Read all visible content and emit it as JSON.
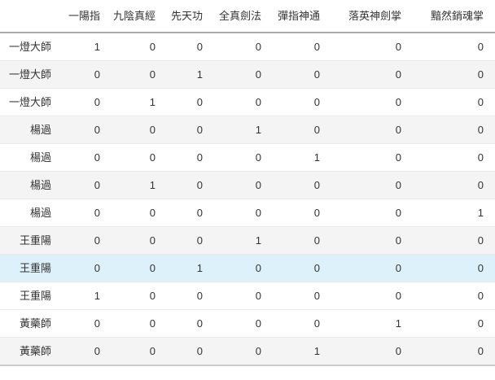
{
  "table": {
    "corner_label": "",
    "columns": [
      "一陽指",
      "九陰真經",
      "先天功",
      "全真劍法",
      "彈指神通",
      "落英神劍掌",
      "黯然銷魂掌"
    ],
    "rows": [
      {
        "label": "一燈大師",
        "values": [
          "1",
          "0",
          "0",
          "0",
          "0",
          "0",
          "0"
        ],
        "variant": "default"
      },
      {
        "label": "一燈大師",
        "values": [
          "0",
          "0",
          "1",
          "0",
          "0",
          "0",
          "0"
        ],
        "variant": "striped"
      },
      {
        "label": "一燈大師",
        "values": [
          "0",
          "1",
          "0",
          "0",
          "0",
          "0",
          "0"
        ],
        "variant": "default"
      },
      {
        "label": "楊過",
        "values": [
          "0",
          "0",
          "0",
          "1",
          "0",
          "0",
          "0"
        ],
        "variant": "striped"
      },
      {
        "label": "楊過",
        "values": [
          "0",
          "0",
          "0",
          "0",
          "1",
          "0",
          "0"
        ],
        "variant": "default"
      },
      {
        "label": "楊過",
        "values": [
          "0",
          "1",
          "0",
          "0",
          "0",
          "0",
          "0"
        ],
        "variant": "striped"
      },
      {
        "label": "楊過",
        "values": [
          "0",
          "0",
          "0",
          "0",
          "0",
          "0",
          "1"
        ],
        "variant": "default"
      },
      {
        "label": "王重陽",
        "values": [
          "0",
          "0",
          "0",
          "1",
          "0",
          "0",
          "0"
        ],
        "variant": "striped"
      },
      {
        "label": "王重陽",
        "values": [
          "0",
          "0",
          "1",
          "0",
          "0",
          "0",
          "0"
        ],
        "variant": "selected"
      },
      {
        "label": "王重陽",
        "values": [
          "1",
          "0",
          "0",
          "0",
          "0",
          "0",
          "0"
        ],
        "variant": "default"
      },
      {
        "label": "黃藥師",
        "values": [
          "0",
          "0",
          "0",
          "0",
          "0",
          "1",
          "0"
        ],
        "variant": "default"
      },
      {
        "label": "黃藥師",
        "values": [
          "0",
          "0",
          "0",
          "0",
          "1",
          "0",
          "0"
        ],
        "variant": "striped"
      }
    ],
    "colors": {
      "text": "#333333",
      "stripe": "#f4f4f4",
      "selected": "#ddf1fb",
      "header_border": "#ababab",
      "row_border": "#eaeaea",
      "bottom_border": "#cccccc"
    }
  }
}
